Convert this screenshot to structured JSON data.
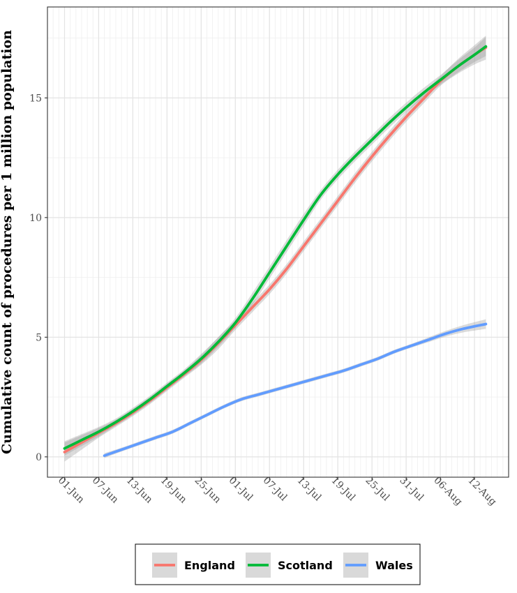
{
  "chart_data": {
    "type": "line",
    "title": "",
    "xlabel": "",
    "ylabel": "Cumulative count of procedures per 1 million population",
    "x_ticks": [
      "01-Jun",
      "07-Jun",
      "13-Jun",
      "19-Jun",
      "25-Jun",
      "01-Jul",
      "07-Jul",
      "13-Jul",
      "19-Jul",
      "25-Jul",
      "31-Jul",
      "06-Aug",
      "12-Aug"
    ],
    "y_ticks": [
      "0",
      "5",
      "10",
      "15"
    ],
    "xlim": [
      "2020-05-29",
      "2020-08-18"
    ],
    "ylim": [
      -0.85,
      18.8
    ],
    "grid": true,
    "confidence_band": true,
    "legend_position": "bottom",
    "series": [
      {
        "name": "England",
        "color": "#F8766D",
        "x": [
          "2020-06-01",
          "2020-06-04",
          "2020-06-07",
          "2020-06-10",
          "2020-06-13",
          "2020-06-16",
          "2020-06-19",
          "2020-06-22",
          "2020-06-25",
          "2020-06-28",
          "2020-07-01",
          "2020-07-04",
          "2020-07-07",
          "2020-07-10",
          "2020-07-13",
          "2020-07-16",
          "2020-07-19",
          "2020-07-22",
          "2020-07-25",
          "2020-07-28",
          "2020-07-31",
          "2020-08-03",
          "2020-08-06",
          "2020-08-09",
          "2020-08-12",
          "2020-08-14"
        ],
        "y": [
          0.2,
          0.6,
          1.0,
          1.4,
          1.85,
          2.35,
          2.9,
          3.45,
          4.05,
          4.75,
          5.5,
          6.25,
          7.0,
          7.85,
          8.8,
          9.75,
          10.7,
          11.65,
          12.55,
          13.4,
          14.2,
          14.95,
          15.7,
          16.3,
          16.8,
          17.1
        ],
        "ci": [
          0.4,
          0.3,
          0.2,
          0.15,
          0.15,
          0.15,
          0.15,
          0.15,
          0.2,
          0.25,
          0.2,
          0.2,
          0.2,
          0.2,
          0.2,
          0.2,
          0.2,
          0.2,
          0.2,
          0.2,
          0.2,
          0.2,
          0.2,
          0.3,
          0.4,
          0.5
        ]
      },
      {
        "name": "Scotland",
        "color": "#00BA38",
        "x": [
          "2020-06-01",
          "2020-06-04",
          "2020-06-07",
          "2020-06-10",
          "2020-06-13",
          "2020-06-16",
          "2020-06-19",
          "2020-06-22",
          "2020-06-25",
          "2020-06-28",
          "2020-07-01",
          "2020-07-04",
          "2020-07-07",
          "2020-07-10",
          "2020-07-13",
          "2020-07-16",
          "2020-07-19",
          "2020-07-22",
          "2020-07-25",
          "2020-07-28",
          "2020-07-31",
          "2020-08-03",
          "2020-08-06",
          "2020-08-09",
          "2020-08-12",
          "2020-08-14"
        ],
        "y": [
          0.35,
          0.7,
          1.05,
          1.45,
          1.9,
          2.4,
          2.95,
          3.5,
          4.1,
          4.8,
          5.6,
          6.6,
          7.7,
          8.8,
          9.9,
          10.95,
          11.8,
          12.55,
          13.25,
          13.95,
          14.6,
          15.2,
          15.75,
          16.3,
          16.8,
          17.15
        ],
        "ci": [
          0.3,
          0.25,
          0.2,
          0.15,
          0.15,
          0.15,
          0.15,
          0.15,
          0.2,
          0.2,
          0.2,
          0.25,
          0.25,
          0.25,
          0.25,
          0.2,
          0.2,
          0.2,
          0.2,
          0.2,
          0.2,
          0.2,
          0.2,
          0.25,
          0.3,
          0.4
        ]
      },
      {
        "name": "Wales",
        "color": "#619CFF",
        "x": [
          "2020-06-08",
          "2020-06-11",
          "2020-06-14",
          "2020-06-17",
          "2020-06-20",
          "2020-06-23",
          "2020-06-26",
          "2020-06-29",
          "2020-07-02",
          "2020-07-05",
          "2020-07-08",
          "2020-07-11",
          "2020-07-14",
          "2020-07-17",
          "2020-07-20",
          "2020-07-23",
          "2020-07-26",
          "2020-07-29",
          "2020-08-01",
          "2020-08-04",
          "2020-08-07",
          "2020-08-10",
          "2020-08-14"
        ],
        "y": [
          0.05,
          0.3,
          0.55,
          0.8,
          1.05,
          1.4,
          1.75,
          2.1,
          2.4,
          2.6,
          2.8,
          3.0,
          3.2,
          3.4,
          3.6,
          3.85,
          4.1,
          4.4,
          4.65,
          4.9,
          5.15,
          5.35,
          5.55
        ],
        "ci": [
          0.1,
          0.08,
          0.08,
          0.08,
          0.08,
          0.08,
          0.08,
          0.08,
          0.08,
          0.08,
          0.08,
          0.08,
          0.08,
          0.08,
          0.08,
          0.08,
          0.08,
          0.08,
          0.08,
          0.1,
          0.12,
          0.15,
          0.2
        ]
      }
    ]
  }
}
